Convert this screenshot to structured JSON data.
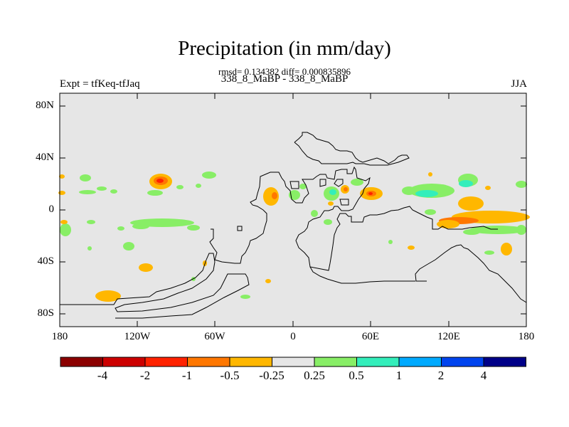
{
  "plot": {
    "title": "Precipitation (in mm/day)",
    "stats": "rmsd= 0.134382 diff= 0.000835896",
    "subtitle_left": "Expt = tfKeq-tfJaq",
    "subtitle_center": "338_8_MaBP - 338_8_MaBP",
    "subtitle_right": "JJA",
    "background_color": "#e6e6e6",
    "y_ticks": [
      "80N",
      "40N",
      "0",
      "40S",
      "80S"
    ],
    "x_ticks": [
      "180",
      "120W",
      "60W",
      "0",
      "60E",
      "120E",
      "180"
    ]
  },
  "colorbar": {
    "colors": [
      "#8b0000",
      "#cc0000",
      "#ff2200",
      "#ff7700",
      "#ffb700",
      "#e6e6e6",
      "#88ee66",
      "#33eebb",
      "#00aaff",
      "#0044ee",
      "#000088"
    ],
    "labels": [
      "-4",
      "-2",
      "-1",
      "-0.5",
      "-0.25",
      "0.25",
      "0.5",
      "1",
      "2",
      "4"
    ]
  }
}
